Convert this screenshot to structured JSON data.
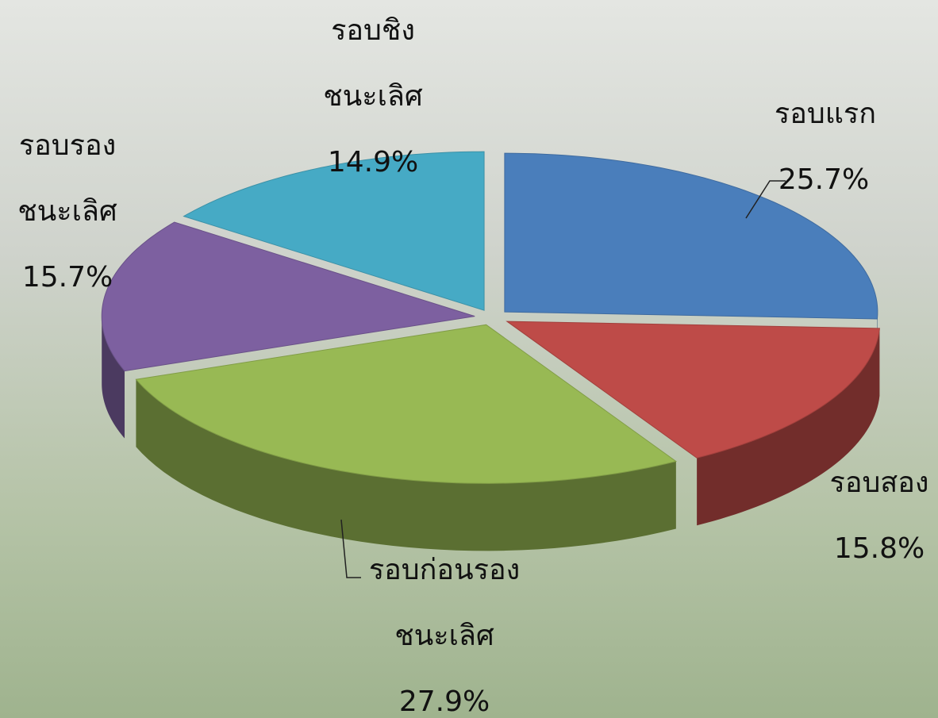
{
  "chart_data": {
    "type": "pie3d",
    "categories": [
      "รอบแรก",
      "รอบสอง",
      "รอบก่อนรอง ชนะเลิศ",
      "รอบรอง ชนะเลิศ",
      "รอบชิง ชนะเลิศ"
    ],
    "values": [
      25.7,
      15.8,
      27.9,
      15.7,
      14.9
    ],
    "value_labels": [
      "25.7%",
      "15.8%",
      "27.9%",
      "15.7%",
      "14.9%"
    ],
    "colors": [
      "#4a7ebb",
      "#be4b48",
      "#98b954",
      "#7d60a0",
      "#46aac5"
    ]
  }
}
